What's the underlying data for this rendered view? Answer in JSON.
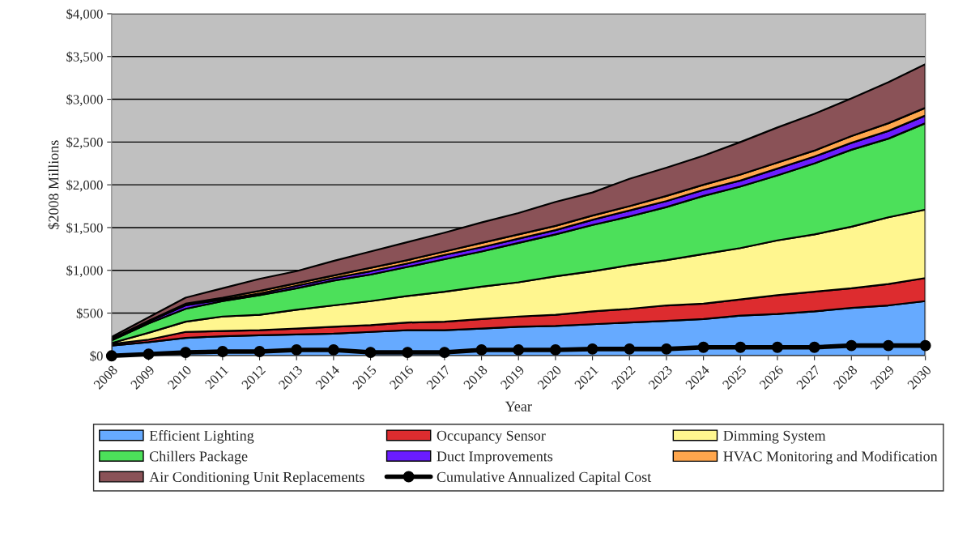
{
  "chart_data": {
    "type": "area",
    "stacked": true,
    "xlabel": "Year",
    "ylabel": "$2008 Millions",
    "categories": [
      "2008",
      "2009",
      "2010",
      "2011",
      "2012",
      "2013",
      "2014",
      "2015",
      "2016",
      "2017",
      "2018",
      "2019",
      "2020",
      "2021",
      "2022",
      "2023",
      "2024",
      "2025",
      "2026",
      "2027",
      "2028",
      "2029",
      "2030"
    ],
    "ylim": [
      0,
      4000
    ],
    "yticks": [
      {
        "value": 0,
        "label": "$0"
      },
      {
        "value": 500,
        "label": "$500"
      },
      {
        "value": 1000,
        "label": "$1,000"
      },
      {
        "value": 1500,
        "label": "$1,500"
      },
      {
        "value": 2000,
        "label": "$2,000"
      },
      {
        "value": 2500,
        "label": "$2,500"
      },
      {
        "value": 3000,
        "label": "$3,000"
      },
      {
        "value": 3500,
        "label": "$3,500"
      },
      {
        "value": 4000,
        "label": "$4,000"
      }
    ],
    "grid": "y",
    "legend": "bottom",
    "series": [
      {
        "name": "Efficient Lighting",
        "color": "#66aaff",
        "values": [
          120,
          160,
          210,
          230,
          240,
          250,
          260,
          280,
          300,
          300,
          320,
          340,
          350,
          370,
          390,
          410,
          430,
          470,
          490,
          520,
          560,
          590,
          640
        ]
      },
      {
        "name": "Occupancy Sensor",
        "color": "#dd2c2f",
        "values": [
          20,
          30,
          70,
          60,
          60,
          70,
          80,
          80,
          90,
          100,
          110,
          120,
          130,
          150,
          160,
          180,
          180,
          190,
          220,
          230,
          230,
          250,
          270
        ]
      },
      {
        "name": "Dimming System",
        "color": "#fff68f",
        "values": [
          10,
          80,
          120,
          170,
          180,
          220,
          250,
          280,
          310,
          350,
          380,
          400,
          450,
          470,
          510,
          530,
          580,
          600,
          640,
          670,
          720,
          780,
          800
        ]
      },
      {
        "name": "Chillers Package",
        "color": "#4ce05a",
        "values": [
          30,
          110,
          150,
          180,
          230,
          250,
          290,
          310,
          340,
          380,
          410,
          460,
          490,
          540,
          570,
          620,
          680,
          720,
          760,
          830,
          900,
          920,
          1010
        ]
      },
      {
        "name": "Duct Improvements",
        "color": "#6a1cff",
        "values": [
          10,
          20,
          40,
          20,
          20,
          30,
          30,
          40,
          40,
          50,
          50,
          50,
          50,
          60,
          70,
          70,
          70,
          70,
          80,
          80,
          80,
          90,
          90
        ]
      },
      {
        "name": "HVAC Monitoring and Modification",
        "color": "#ffa64d",
        "values": [
          10,
          10,
          20,
          20,
          30,
          30,
          30,
          40,
          40,
          40,
          50,
          50,
          50,
          50,
          50,
          60,
          60,
          70,
          70,
          70,
          80,
          90,
          90
        ]
      },
      {
        "name": "Air Conditioning Unit Replacements",
        "color": "#8a5257",
        "values": [
          20,
          40,
          70,
          110,
          140,
          140,
          170,
          190,
          210,
          220,
          240,
          250,
          280,
          270,
          320,
          330,
          340,
          380,
          410,
          430,
          440,
          480,
          510
        ]
      },
      {
        "name": "Cumulative Annualized Capital Cost",
        "type": "line",
        "color": "#000000",
        "marker": "circle",
        "values": [
          0,
          20,
          40,
          50,
          50,
          70,
          70,
          40,
          40,
          40,
          70,
          70,
          70,
          80,
          80,
          80,
          100,
          100,
          100,
          100,
          120,
          120,
          120
        ]
      }
    ]
  }
}
